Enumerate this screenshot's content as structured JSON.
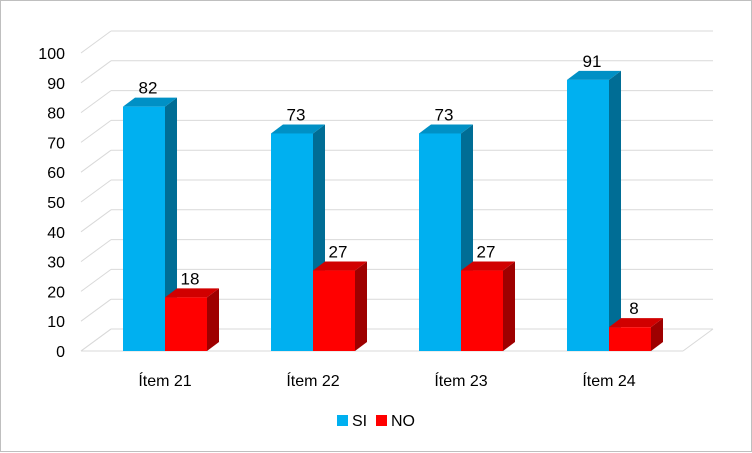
{
  "chart_data": {
    "type": "bar",
    "title": "",
    "xlabel": "",
    "ylabel": "",
    "categories": [
      "Ítem 21",
      "Ítem 22",
      "Ítem 23",
      "Ítem 24"
    ],
    "series": [
      {
        "name": "SI",
        "values": [
          82,
          73,
          73,
          91
        ],
        "color": "#00b0f0"
      },
      {
        "name": "NO",
        "values": [
          18,
          27,
          27,
          8
        ],
        "color": "#ff0000"
      }
    ],
    "ylim": [
      0,
      100
    ],
    "yticks": [
      0,
      10,
      20,
      30,
      40,
      50,
      60,
      70,
      80,
      90,
      100
    ],
    "grid": true,
    "legend": "bottom",
    "style": "3d-column"
  }
}
